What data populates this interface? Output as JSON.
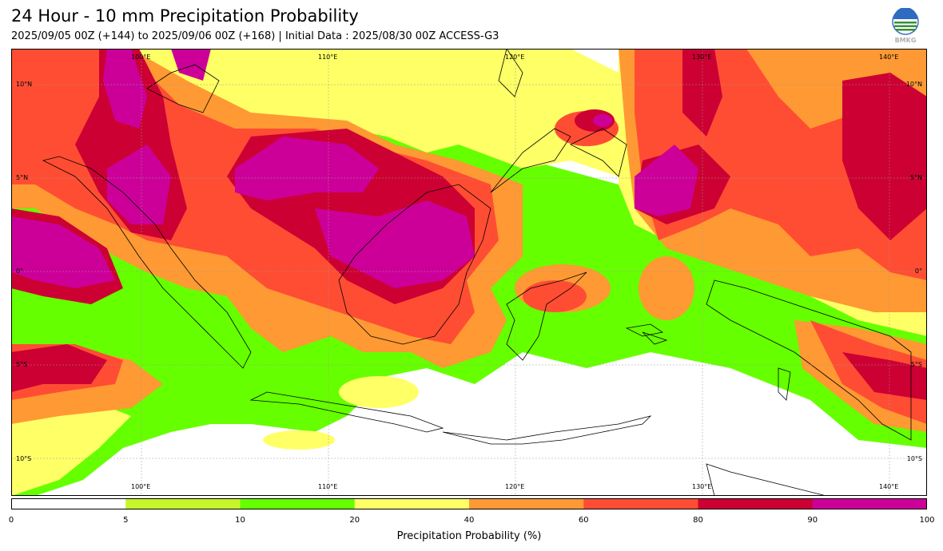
{
  "header": {
    "title": "24 Hour - 10 mm Precipitation Probability",
    "subtitle": "2025/09/05 00Z (+144) to 2025/09/06 00Z (+168) | Initial Data : 2025/08/30 00Z ACCESS-G3"
  },
  "logo": {
    "icon": "bmkg-logo-icon",
    "text": "BMKG"
  },
  "map": {
    "extent": {
      "lon": [
        93,
        142
      ],
      "lat": [
        -12,
        12
      ]
    },
    "lon_labels": [
      "100°E",
      "110°E",
      "120°E",
      "130°E",
      "140°E"
    ],
    "lat_labels": [
      "10°N",
      "5°N",
      "0°",
      "5°S",
      "10°S"
    ]
  },
  "colorbar": {
    "ticks": [
      "0",
      "5",
      "10",
      "20",
      "40",
      "60",
      "80",
      "90",
      "100"
    ],
    "colors": [
      "#ffffff",
      "#c6f52a",
      "#66ff00",
      "#ffff66",
      "#ff9933",
      "#ff4d33",
      "#cc0033",
      "#cc0099"
    ],
    "label": "Precipitation Probability (%)"
  }
}
